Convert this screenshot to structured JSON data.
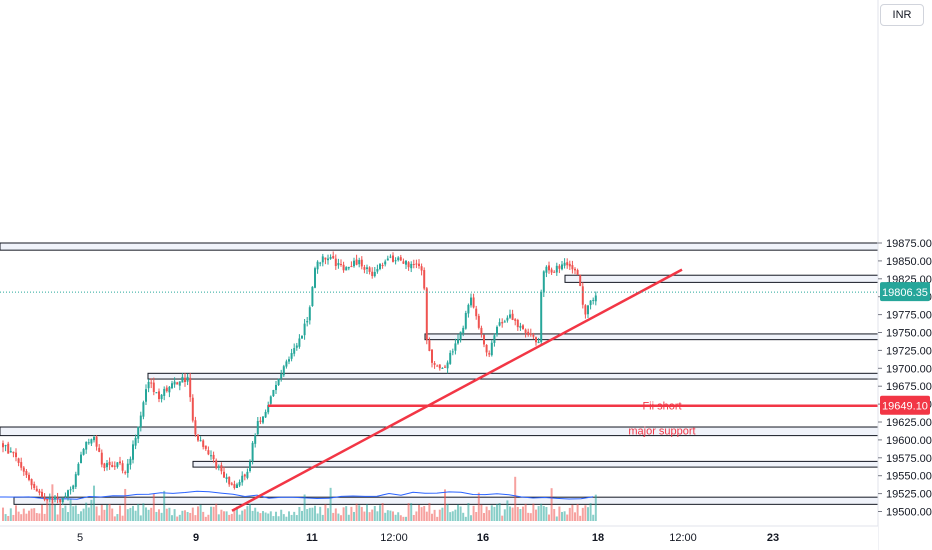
{
  "currency": "INR",
  "chart_data": {
    "type": "candlestick",
    "title": "",
    "xlabel": "",
    "ylabel": "",
    "ylim": [
      19490,
      19885
    ],
    "y_ticks": [
      19500,
      19525,
      19550,
      19575,
      19600,
      19625,
      19650,
      19675,
      19700,
      19725,
      19750,
      19775,
      19800,
      19825,
      19850,
      19875
    ],
    "x_tick_labels": [
      "5",
      "9",
      "11",
      "12:00",
      "16",
      "18",
      "12:00",
      "23"
    ],
    "last_price": "19806.35",
    "fii_level_label": "19649.10",
    "annotations": [
      {
        "text": "Fii short",
        "color": "#f23645",
        "price": 19649.1
      },
      {
        "text": "major support",
        "color": "#f23645",
        "price": 19610
      }
    ],
    "zones": [
      {
        "from": 19865,
        "to": 19875
      },
      {
        "from": 19820,
        "to": 19830
      },
      {
        "from": 19740,
        "to": 19748
      },
      {
        "from": 19685,
        "to": 19693
      },
      {
        "from": 19606,
        "to": 19618
      },
      {
        "from": 19562,
        "to": 19570
      },
      {
        "from": 19510,
        "to": 19520
      }
    ],
    "trendline": {
      "start_price": 19515,
      "end_price": 19835,
      "color": "#f23645"
    },
    "colors": {
      "up": "#26a69a",
      "down": "#ef5350",
      "trend": "#f23645",
      "last": "#26a69a",
      "volume_ma": "#2962ff"
    }
  }
}
